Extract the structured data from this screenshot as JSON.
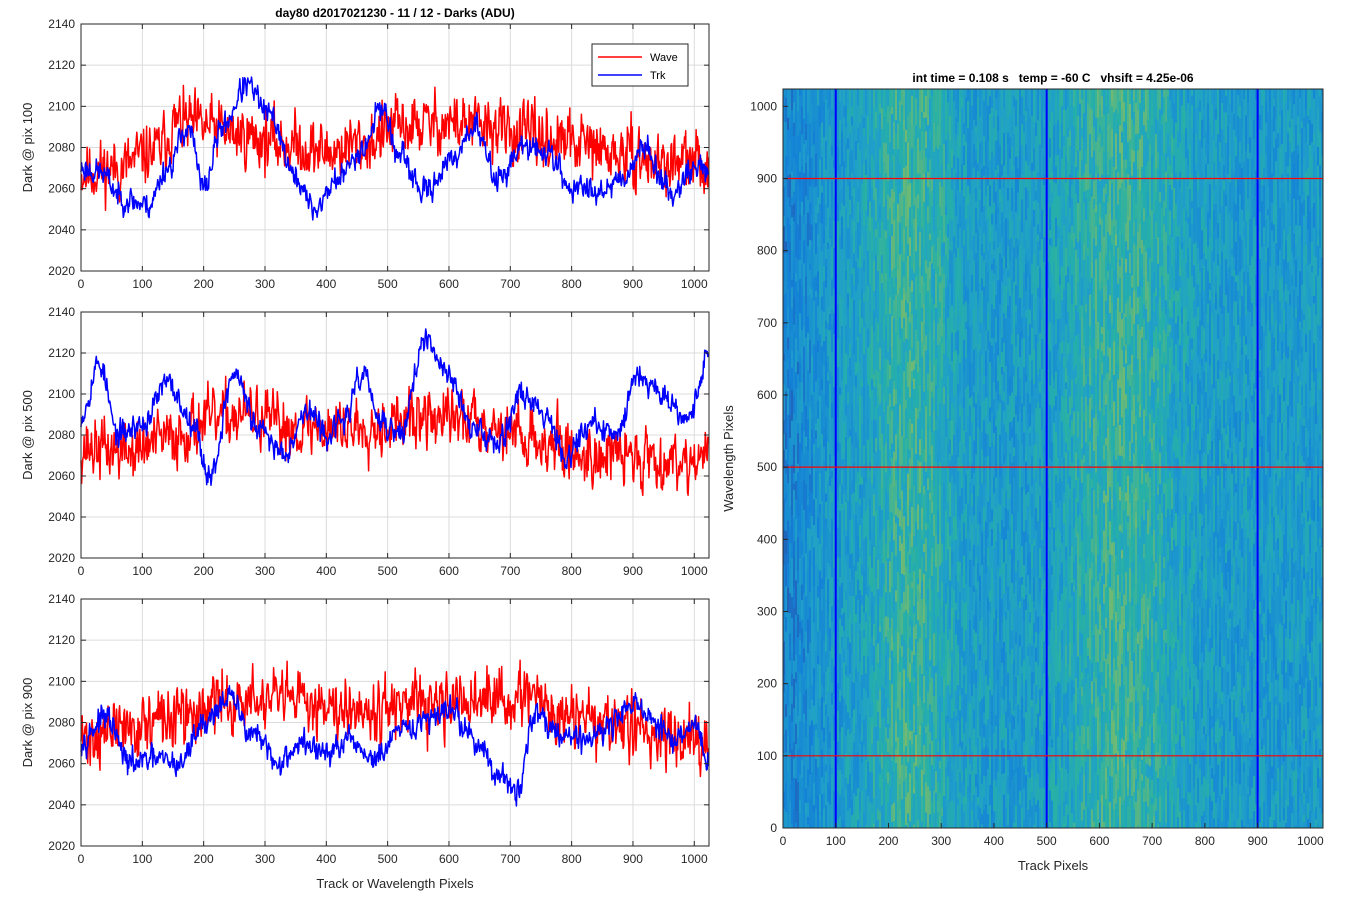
{
  "figure_title": "day80 d2017021230 - 11 / 12 - Darks (ADU)",
  "chart_data": [
    {
      "type": "line",
      "ylabel": "Dark @ pix 100",
      "xlabel": "",
      "xlim": [
        0,
        1024
      ],
      "ylim": [
        2020,
        2140
      ],
      "xticks": [
        0,
        100,
        200,
        300,
        400,
        500,
        600,
        700,
        800,
        900,
        1000
      ],
      "yticks": [
        2020,
        2040,
        2060,
        2080,
        2100,
        2120,
        2140
      ],
      "grid": true,
      "legend": "top-right",
      "series": [
        {
          "name": "Wave",
          "color": "#ff0000",
          "seed": 11,
          "profile": [
            [
              0,
              2068
            ],
            [
              60,
              2070
            ],
            [
              120,
              2078
            ],
            [
              160,
              2092
            ],
            [
              200,
              2090
            ],
            [
              260,
              2086
            ],
            [
              330,
              2082
            ],
            [
              400,
              2078
            ],
            [
              460,
              2082
            ],
            [
              520,
              2090
            ],
            [
              600,
              2092
            ],
            [
              660,
              2090
            ],
            [
              720,
              2086
            ],
            [
              800,
              2082
            ],
            [
              880,
              2076
            ],
            [
              960,
              2072
            ],
            [
              1024,
              2072
            ]
          ],
          "noise": 14
        },
        {
          "name": "Trk",
          "color": "#0000ff",
          "seed": 23,
          "profile": [
            [
              0,
              2070
            ],
            [
              30,
              2068
            ],
            [
              70,
              2055
            ],
            [
              110,
              2052
            ],
            [
              140,
              2070
            ],
            [
              175,
              2090
            ],
            [
              200,
              2060
            ],
            [
              230,
              2090
            ],
            [
              270,
              2110
            ],
            [
              310,
              2095
            ],
            [
              350,
              2065
            ],
            [
              380,
              2050
            ],
            [
              420,
              2065
            ],
            [
              460,
              2080
            ],
            [
              490,
              2100
            ],
            [
              520,
              2075
            ],
            [
              560,
              2058
            ],
            [
              600,
              2072
            ],
            [
              640,
              2090
            ],
            [
              680,
              2065
            ],
            [
              720,
              2080
            ],
            [
              760,
              2078
            ],
            [
              800,
              2060
            ],
            [
              850,
              2060
            ],
            [
              880,
              2065
            ],
            [
              920,
              2080
            ],
            [
              960,
              2058
            ],
            [
              1000,
              2070
            ],
            [
              1024,
              2070
            ]
          ],
          "noise": 6
        }
      ]
    },
    {
      "type": "line",
      "ylabel": "Dark @ pix 500",
      "xlabel": "",
      "xlim": [
        0,
        1024
      ],
      "ylim": [
        2020,
        2140
      ],
      "xticks": [
        0,
        100,
        200,
        300,
        400,
        500,
        600,
        700,
        800,
        900,
        1000
      ],
      "yticks": [
        2020,
        2040,
        2060,
        2080,
        2100,
        2120,
        2140
      ],
      "grid": true,
      "series": [
        {
          "name": "Wave",
          "color": "#ff0000",
          "seed": 37,
          "profile": [
            [
              0,
              2074
            ],
            [
              80,
              2072
            ],
            [
              140,
              2078
            ],
            [
              200,
              2086
            ],
            [
              260,
              2090
            ],
            [
              340,
              2084
            ],
            [
              420,
              2084
            ],
            [
              500,
              2086
            ],
            [
              580,
              2088
            ],
            [
              640,
              2088
            ],
            [
              700,
              2082
            ],
            [
              760,
              2076
            ],
            [
              820,
              2070
            ],
            [
              900,
              2070
            ],
            [
              960,
              2068
            ],
            [
              1024,
              2070
            ]
          ],
          "noise": 14
        },
        {
          "name": "Trk",
          "color": "#0000ff",
          "seed": 53,
          "profile": [
            [
              0,
              2090
            ],
            [
              30,
              2115
            ],
            [
              60,
              2080
            ],
            [
              100,
              2085
            ],
            [
              140,
              2105
            ],
            [
              180,
              2088
            ],
            [
              210,
              2060
            ],
            [
              250,
              2110
            ],
            [
              290,
              2082
            ],
            [
              330,
              2072
            ],
            [
              370,
              2092
            ],
            [
              400,
              2080
            ],
            [
              430,
              2088
            ],
            [
              460,
              2110
            ],
            [
              490,
              2085
            ],
            [
              520,
              2080
            ],
            [
              560,
              2125
            ],
            [
              600,
              2110
            ],
            [
              640,
              2082
            ],
            [
              680,
              2078
            ],
            [
              720,
              2100
            ],
            [
              760,
              2090
            ],
            [
              790,
              2070
            ],
            [
              830,
              2085
            ],
            [
              870,
              2080
            ],
            [
              910,
              2110
            ],
            [
              950,
              2100
            ],
            [
              990,
              2088
            ],
            [
              1024,
              2120
            ]
          ],
          "noise": 6
        }
      ]
    },
    {
      "type": "line",
      "ylabel": "Dark @ pix 900",
      "xlabel": "Track or Wavelength Pixels",
      "xlim": [
        0,
        1024
      ],
      "ylim": [
        2020,
        2140
      ],
      "xticks": [
        0,
        100,
        200,
        300,
        400,
        500,
        600,
        700,
        800,
        900,
        1000
      ],
      "yticks": [
        2020,
        2040,
        2060,
        2080,
        2100,
        2120,
        2140
      ],
      "grid": true,
      "series": [
        {
          "name": "Wave",
          "color": "#ff0000",
          "seed": 71,
          "profile": [
            [
              0,
              2072
            ],
            [
              80,
              2078
            ],
            [
              160,
              2082
            ],
            [
              240,
              2090
            ],
            [
              320,
              2090
            ],
            [
              400,
              2090
            ],
            [
              480,
              2088
            ],
            [
              560,
              2086
            ],
            [
              640,
              2090
            ],
            [
              720,
              2092
            ],
            [
              800,
              2082
            ],
            [
              880,
              2078
            ],
            [
              960,
              2074
            ],
            [
              1024,
              2074
            ]
          ],
          "noise": 14
        },
        {
          "name": "Trk",
          "color": "#0000ff",
          "seed": 97,
          "profile": [
            [
              0,
              2072
            ],
            [
              40,
              2082
            ],
            [
              80,
              2060
            ],
            [
              120,
              2062
            ],
            [
              160,
              2060
            ],
            [
              200,
              2080
            ],
            [
              240,
              2092
            ],
            [
              280,
              2075
            ],
            [
              320,
              2060
            ],
            [
              360,
              2070
            ],
            [
              400,
              2065
            ],
            [
              440,
              2070
            ],
            [
              480,
              2062
            ],
            [
              520,
              2075
            ],
            [
              560,
              2080
            ],
            [
              600,
              2088
            ],
            [
              640,
              2072
            ],
            [
              680,
              2055
            ],
            [
              710,
              2045
            ],
            [
              740,
              2085
            ],
            [
              780,
              2075
            ],
            [
              820,
              2072
            ],
            [
              860,
              2078
            ],
            [
              900,
              2090
            ],
            [
              940,
              2078
            ],
            [
              970,
              2070
            ],
            [
              1000,
              2080
            ],
            [
              1024,
              2060
            ]
          ],
          "noise": 6
        }
      ]
    },
    {
      "type": "heatmap",
      "title": "int time = 0.108 s   temp = -60 C   vhsift = 4.25e-06",
      "xlabel": "Track Pixels",
      "ylabel": "Wavelength Pixels",
      "xlim": [
        0,
        1024
      ],
      "ylim": [
        0,
        1024
      ],
      "xticks": [
        0,
        100,
        200,
        300,
        400,
        500,
        600,
        700,
        800,
        900,
        1000
      ],
      "yticks": [
        0,
        100,
        200,
        300,
        400,
        500,
        600,
        700,
        800,
        900,
        1000
      ],
      "colormap": "parula",
      "vertical_markers": [
        100,
        500,
        900
      ],
      "vertical_marker_color": "#0000ff",
      "horizontal_markers": [
        100,
        500,
        900
      ],
      "horizontal_marker_color": "#ff0000"
    }
  ]
}
